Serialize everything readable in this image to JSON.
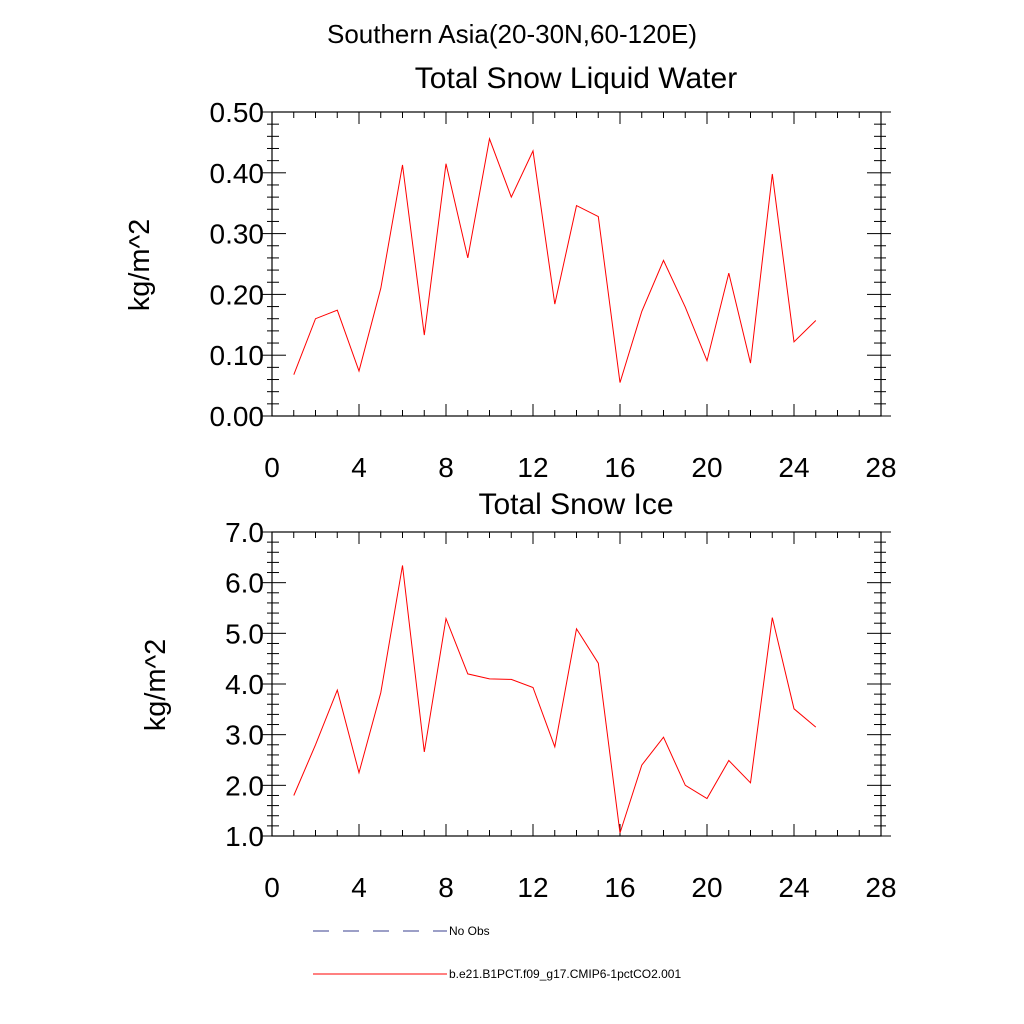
{
  "figure": {
    "suptitle": "Southern Asia(20-30N,60-120E)"
  },
  "chart_data": [
    {
      "type": "line",
      "title": "Total Snow Liquid Water",
      "xlabel": "",
      "ylabel": "kg/m^2",
      "xlim": [
        0,
        28
      ],
      "ylim": [
        0.0,
        0.5
      ],
      "xticks": [
        "0",
        "4",
        "8",
        "12",
        "16",
        "20",
        "24",
        "28"
      ],
      "xtick_values": [
        0,
        4,
        8,
        12,
        16,
        20,
        24,
        28
      ],
      "yticks": [
        "0.00",
        "0.10",
        "0.20",
        "0.30",
        "0.40",
        "0.50"
      ],
      "ytick_values": [
        0.0,
        0.1,
        0.2,
        0.3,
        0.4,
        0.5
      ],
      "x": [
        1,
        2,
        3,
        4,
        5,
        6,
        7,
        8,
        9,
        10,
        11,
        12,
        13,
        14,
        15,
        16,
        17,
        18,
        19,
        20,
        21,
        22,
        23,
        24,
        25
      ],
      "series": [
        {
          "name": "b.e21.B1PCT.f09_g17.CMIP6-1pctCO2.001",
          "color": "#ff0000",
          "values": [
            0.068,
            0.16,
            0.174,
            0.074,
            0.21,
            0.413,
            0.133,
            0.415,
            0.26,
            0.456,
            0.36,
            0.436,
            0.184,
            0.346,
            0.328,
            0.055,
            0.172,
            0.256,
            0.179,
            0.091,
            0.235,
            0.087,
            0.398,
            0.122,
            0.157
          ]
        }
      ],
      "grid": false,
      "legend": "below"
    },
    {
      "type": "line",
      "title": "Total Snow Ice",
      "xlabel": "",
      "ylabel": "kg/m^2",
      "xlim": [
        0,
        28
      ],
      "ylim": [
        1.0,
        7.0
      ],
      "xticks": [
        "0",
        "4",
        "8",
        "12",
        "16",
        "20",
        "24",
        "28"
      ],
      "xtick_values": [
        0,
        4,
        8,
        12,
        16,
        20,
        24,
        28
      ],
      "yticks": [
        "1.0",
        "2.0",
        "3.0",
        "4.0",
        "5.0",
        "6.0",
        "7.0"
      ],
      "ytick_values": [
        1.0,
        2.0,
        3.0,
        4.0,
        5.0,
        6.0,
        7.0
      ],
      "x": [
        1,
        2,
        3,
        4,
        5,
        6,
        7,
        8,
        9,
        10,
        11,
        12,
        13,
        14,
        15,
        16,
        17,
        18,
        19,
        20,
        21,
        22,
        23,
        24,
        25
      ],
      "series": [
        {
          "name": "b.e21.B1PCT.f09_g17.CMIP6-1pctCO2.001",
          "color": "#ff0000",
          "values": [
            1.8,
            2.8,
            3.88,
            2.25,
            3.83,
            6.34,
            2.66,
            5.29,
            4.2,
            4.1,
            4.09,
            3.93,
            2.76,
            5.09,
            4.41,
            1.06,
            2.4,
            2.95,
            2.0,
            1.74,
            2.49,
            2.05,
            5.31,
            3.51,
            3.15
          ]
        }
      ],
      "grid": false,
      "legend": "below"
    }
  ],
  "legend": {
    "items": [
      {
        "label": "No Obs",
        "style": "dashed",
        "color": "#3a3f8f"
      },
      {
        "label": "b.e21.B1PCT.f09_g17.CMIP6-1pctCO2.001",
        "style": "solid",
        "color": "#ff0000"
      }
    ]
  }
}
